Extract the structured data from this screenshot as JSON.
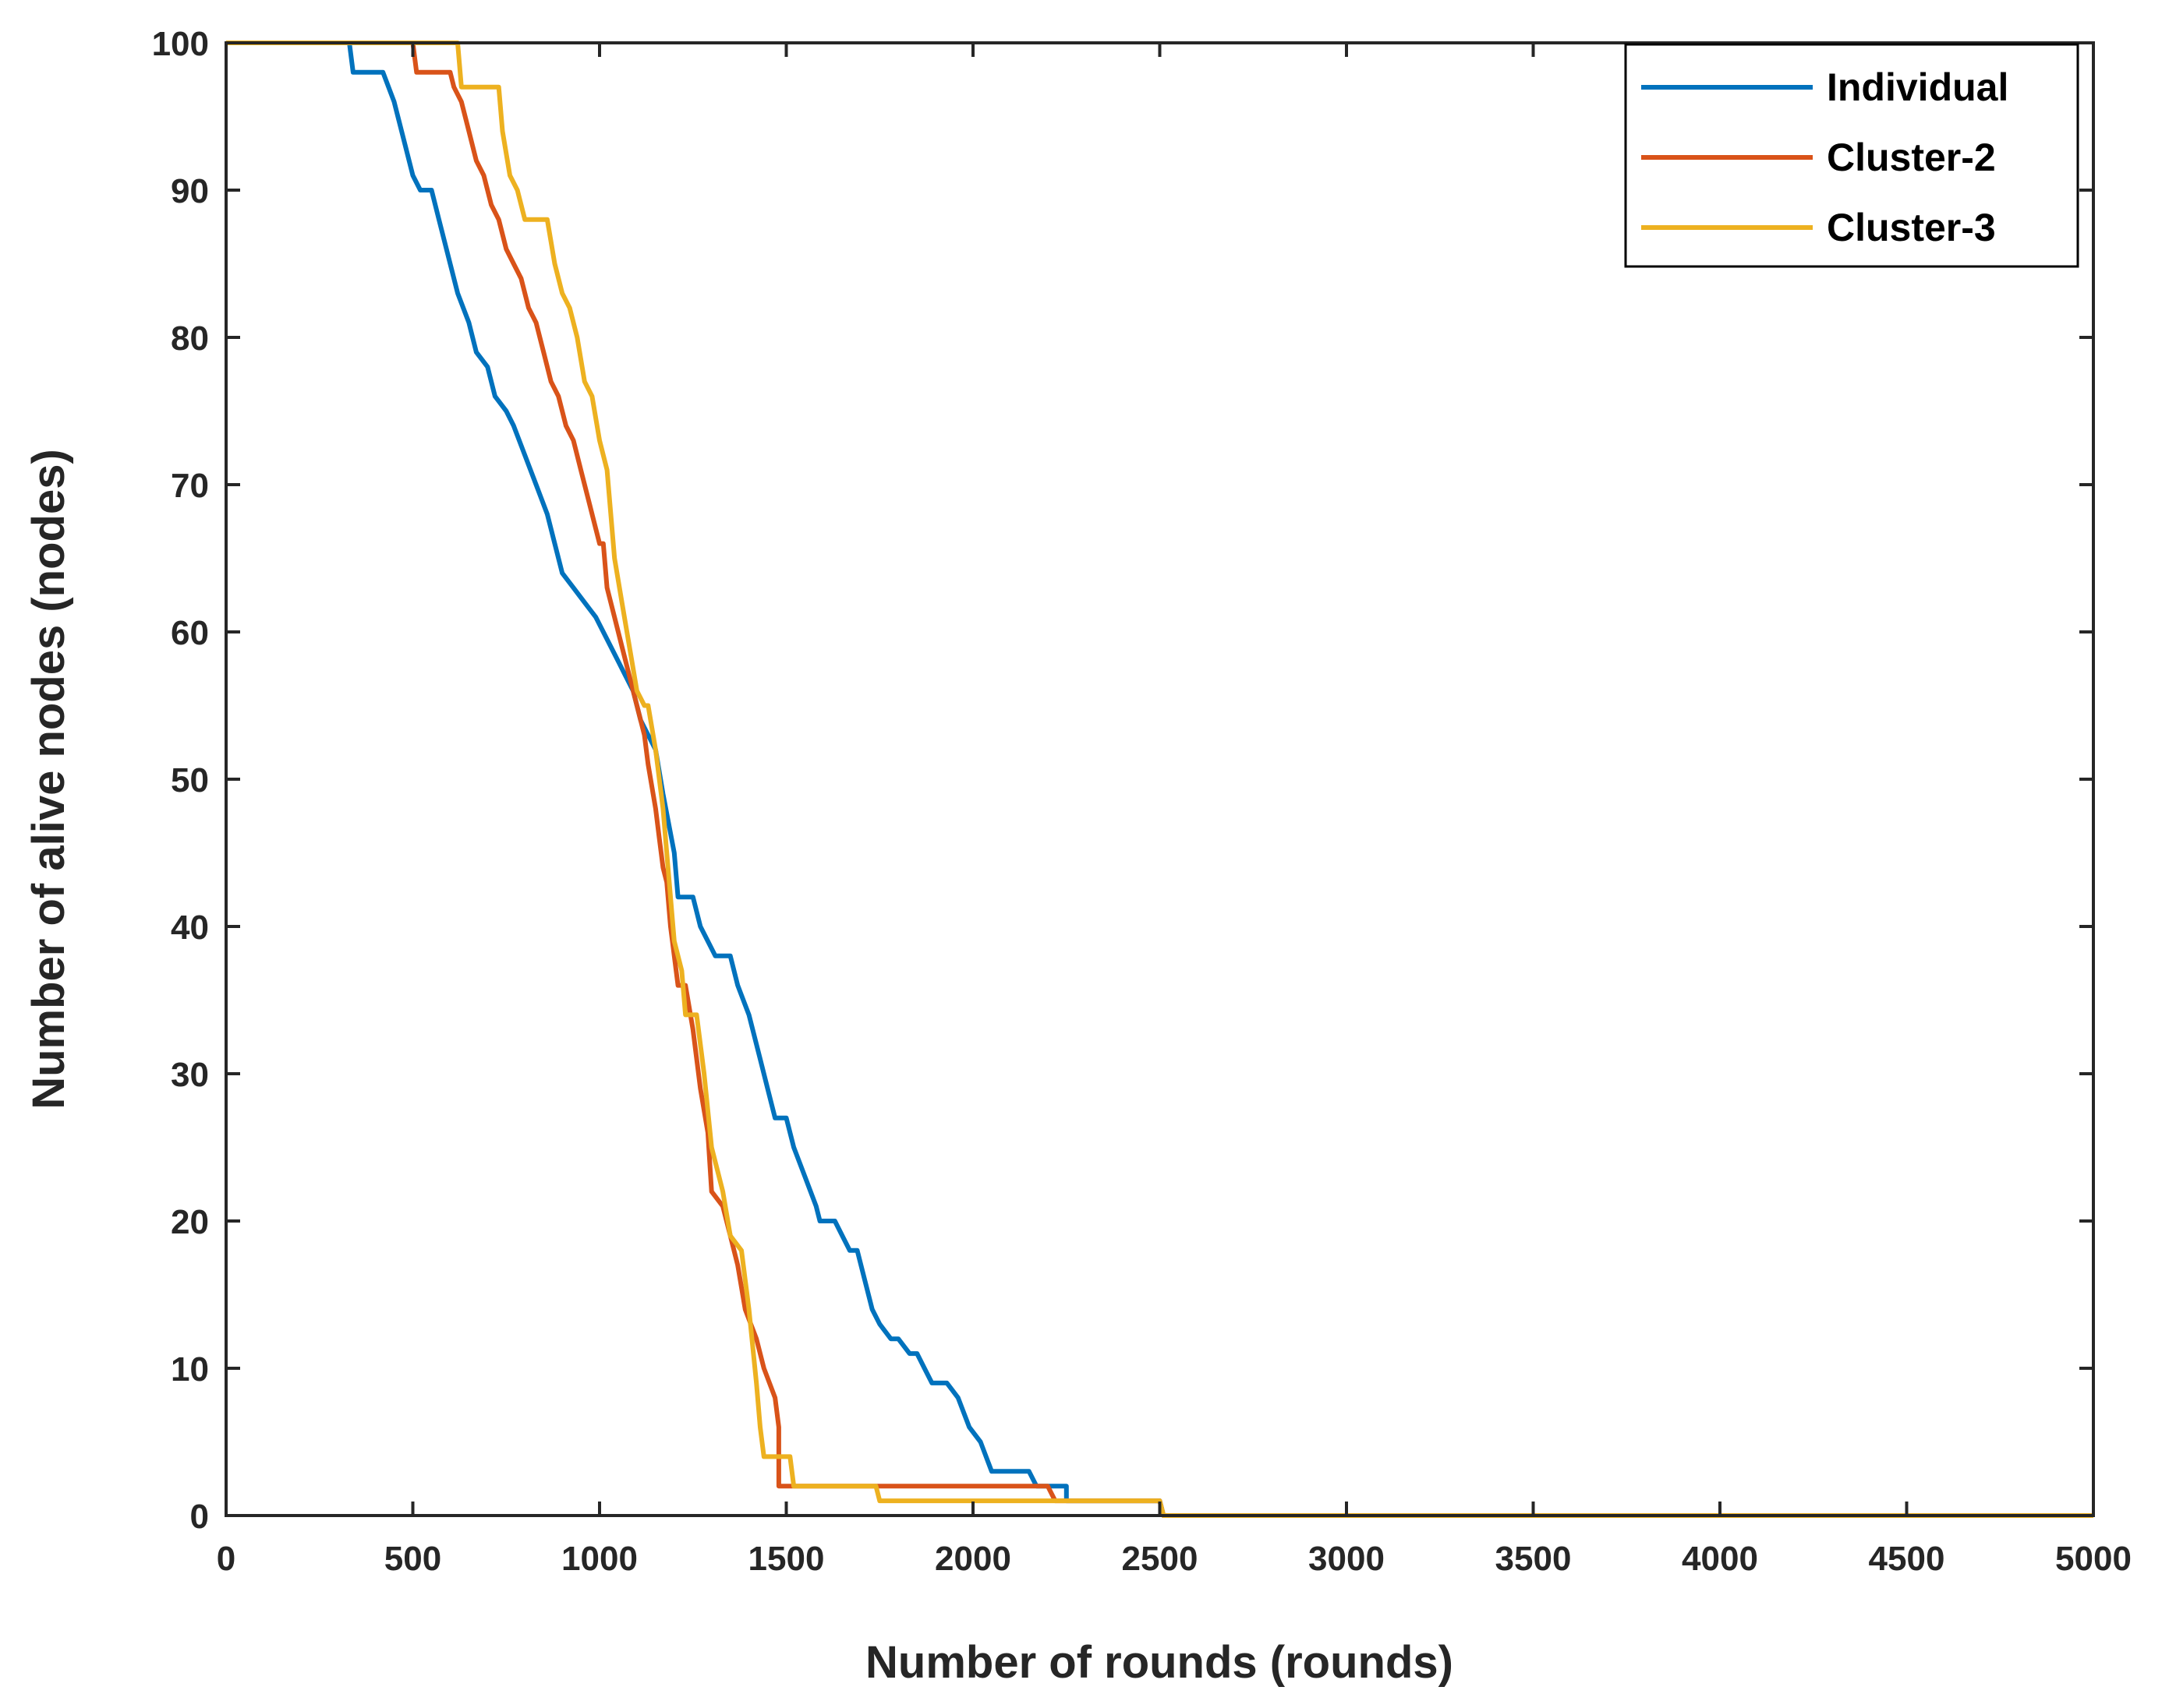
{
  "chart_data": {
    "type": "line",
    "xlabel": "Number of rounds (rounds)",
    "ylabel": "Number of alive nodes (nodes)",
    "xlim": [
      0,
      5000
    ],
    "ylim": [
      0,
      100
    ],
    "xticks": [
      0,
      500,
      1000,
      1500,
      2000,
      2500,
      3000,
      3500,
      4000,
      4500,
      5000
    ],
    "yticks": [
      0,
      10,
      20,
      30,
      40,
      50,
      60,
      70,
      80,
      90,
      100
    ],
    "grid": false,
    "legend_position": "top-right",
    "series": [
      {
        "name": "Individual",
        "color": "#0072BD",
        "points": [
          [
            0,
            100
          ],
          [
            330,
            100
          ],
          [
            340,
            98
          ],
          [
            420,
            98
          ],
          [
            450,
            96
          ],
          [
            480,
            93
          ],
          [
            500,
            91
          ],
          [
            520,
            90
          ],
          [
            550,
            90
          ],
          [
            570,
            88
          ],
          [
            600,
            85
          ],
          [
            620,
            83
          ],
          [
            650,
            81
          ],
          [
            670,
            79
          ],
          [
            700,
            78
          ],
          [
            720,
            76
          ],
          [
            750,
            75
          ],
          [
            770,
            74
          ],
          [
            800,
            72
          ],
          [
            830,
            70
          ],
          [
            860,
            68
          ],
          [
            880,
            66
          ],
          [
            900,
            64
          ],
          [
            930,
            63
          ],
          [
            960,
            62
          ],
          [
            990,
            61
          ],
          [
            1010,
            60
          ],
          [
            1030,
            59
          ],
          [
            1050,
            58
          ],
          [
            1070,
            57
          ],
          [
            1090,
            56
          ],
          [
            1110,
            54
          ],
          [
            1130,
            53
          ],
          [
            1150,
            52
          ],
          [
            1170,
            49
          ],
          [
            1200,
            45
          ],
          [
            1210,
            42
          ],
          [
            1250,
            42
          ],
          [
            1270,
            40
          ],
          [
            1290,
            39
          ],
          [
            1310,
            38
          ],
          [
            1350,
            38
          ],
          [
            1370,
            36
          ],
          [
            1400,
            34
          ],
          [
            1430,
            31
          ],
          [
            1450,
            29
          ],
          [
            1470,
            27
          ],
          [
            1500,
            27
          ],
          [
            1520,
            25
          ],
          [
            1550,
            23
          ],
          [
            1580,
            21
          ],
          [
            1590,
            20
          ],
          [
            1630,
            20
          ],
          [
            1650,
            19
          ],
          [
            1670,
            18
          ],
          [
            1690,
            18
          ],
          [
            1710,
            16
          ],
          [
            1730,
            14
          ],
          [
            1750,
            13
          ],
          [
            1780,
            12
          ],
          [
            1800,
            12
          ],
          [
            1830,
            11
          ],
          [
            1850,
            11
          ],
          [
            1870,
            10
          ],
          [
            1890,
            9
          ],
          [
            1930,
            9
          ],
          [
            1960,
            8
          ],
          [
            1990,
            6
          ],
          [
            2020,
            5
          ],
          [
            2050,
            3
          ],
          [
            2100,
            3
          ],
          [
            2150,
            3
          ],
          [
            2170,
            2
          ],
          [
            2250,
            2
          ],
          [
            2250,
            1
          ],
          [
            2500,
            1
          ],
          [
            2510,
            0
          ],
          [
            5000,
            0
          ]
        ]
      },
      {
        "name": "Cluster-2",
        "color": "#D95319",
        "points": [
          [
            0,
            100
          ],
          [
            500,
            100
          ],
          [
            510,
            98
          ],
          [
            600,
            98
          ],
          [
            610,
            97
          ],
          [
            630,
            96
          ],
          [
            650,
            94
          ],
          [
            670,
            92
          ],
          [
            690,
            91
          ],
          [
            710,
            89
          ],
          [
            730,
            88
          ],
          [
            750,
            86
          ],
          [
            770,
            85
          ],
          [
            790,
            84
          ],
          [
            810,
            82
          ],
          [
            830,
            81
          ],
          [
            850,
            79
          ],
          [
            870,
            77
          ],
          [
            890,
            76
          ],
          [
            910,
            74
          ],
          [
            930,
            73
          ],
          [
            950,
            71
          ],
          [
            970,
            69
          ],
          [
            990,
            67
          ],
          [
            1000,
            66
          ],
          [
            1010,
            66
          ],
          [
            1020,
            63
          ],
          [
            1040,
            61
          ],
          [
            1060,
            59
          ],
          [
            1080,
            57
          ],
          [
            1100,
            55
          ],
          [
            1120,
            53
          ],
          [
            1130,
            51
          ],
          [
            1150,
            48
          ],
          [
            1160,
            46
          ],
          [
            1170,
            44
          ],
          [
            1180,
            43
          ],
          [
            1190,
            40
          ],
          [
            1200,
            38
          ],
          [
            1210,
            36
          ],
          [
            1230,
            36
          ],
          [
            1250,
            33
          ],
          [
            1270,
            29
          ],
          [
            1290,
            26
          ],
          [
            1300,
            22
          ],
          [
            1330,
            21
          ],
          [
            1350,
            19
          ],
          [
            1370,
            17
          ],
          [
            1390,
            14
          ],
          [
            1420,
            12
          ],
          [
            1440,
            10
          ],
          [
            1470,
            8
          ],
          [
            1480,
            6
          ],
          [
            1480,
            4
          ],
          [
            1480,
            2
          ],
          [
            1750,
            2
          ],
          [
            2200,
            2
          ],
          [
            2220,
            1
          ],
          [
            2500,
            1
          ],
          [
            2510,
            0
          ],
          [
            5000,
            0
          ]
        ]
      },
      {
        "name": "Cluster-3",
        "color": "#EDB120",
        "points": [
          [
            0,
            100
          ],
          [
            620,
            100
          ],
          [
            630,
            97
          ],
          [
            730,
            97
          ],
          [
            740,
            94
          ],
          [
            760,
            91
          ],
          [
            780,
            90
          ],
          [
            800,
            88
          ],
          [
            860,
            88
          ],
          [
            880,
            85
          ],
          [
            900,
            83
          ],
          [
            920,
            82
          ],
          [
            940,
            80
          ],
          [
            960,
            77
          ],
          [
            980,
            76
          ],
          [
            1000,
            73
          ],
          [
            1020,
            71
          ],
          [
            1030,
            68
          ],
          [
            1040,
            65
          ],
          [
            1060,
            62
          ],
          [
            1080,
            59
          ],
          [
            1100,
            56
          ],
          [
            1120,
            55
          ],
          [
            1130,
            55
          ],
          [
            1150,
            52
          ],
          [
            1170,
            48
          ],
          [
            1180,
            45
          ],
          [
            1190,
            42
          ],
          [
            1200,
            39
          ],
          [
            1220,
            37
          ],
          [
            1230,
            34
          ],
          [
            1260,
            34
          ],
          [
            1280,
            30
          ],
          [
            1300,
            25
          ],
          [
            1330,
            22
          ],
          [
            1350,
            19
          ],
          [
            1380,
            18
          ],
          [
            1400,
            14
          ],
          [
            1420,
            9
          ],
          [
            1430,
            6
          ],
          [
            1440,
            4
          ],
          [
            1510,
            4
          ],
          [
            1520,
            2
          ],
          [
            1740,
            2
          ],
          [
            1750,
            1
          ],
          [
            2500,
            1
          ],
          [
            2510,
            0
          ],
          [
            5000,
            0
          ]
        ]
      }
    ]
  }
}
